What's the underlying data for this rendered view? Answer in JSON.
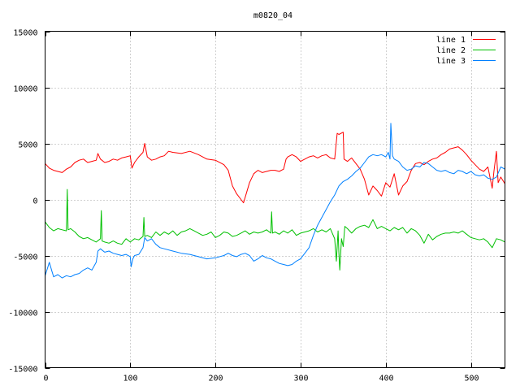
{
  "chart_data": {
    "type": "line",
    "title": "m0820_04",
    "xlabel": "",
    "ylabel": "",
    "xlim": [
      0,
      540
    ],
    "ylim": [
      -15000,
      15000
    ],
    "xticks": [
      0,
      100,
      200,
      300,
      400,
      500
    ],
    "xtick_labels": [
      "0",
      "100",
      "200",
      "300",
      "400",
      "500"
    ],
    "yticks": [
      -15000,
      -10000,
      -5000,
      0,
      5000,
      10000,
      15000
    ],
    "ytick_labels": [
      "-15000",
      "-10000",
      "-5000",
      "0",
      "5000",
      "10000",
      "15000"
    ],
    "grid": true,
    "legend_position": "top-right",
    "series": [
      {
        "name": "line 1",
        "color": "#ff0000",
        "x": [
          0,
          5,
          10,
          15,
          20,
          25,
          30,
          35,
          40,
          45,
          50,
          55,
          60,
          62,
          65,
          70,
          75,
          80,
          85,
          90,
          95,
          100,
          102,
          105,
          110,
          115,
          117,
          120,
          125,
          130,
          135,
          140,
          145,
          150,
          160,
          170,
          180,
          190,
          200,
          210,
          215,
          220,
          225,
          230,
          233,
          235,
          240,
          245,
          250,
          255,
          260,
          265,
          270,
          275,
          280,
          283,
          285,
          290,
          295,
          300,
          305,
          310,
          315,
          320,
          325,
          330,
          335,
          340,
          343,
          345,
          350,
          351,
          355,
          360,
          365,
          370,
          375,
          380,
          385,
          390,
          395,
          400,
          405,
          410,
          415,
          420,
          425,
          430,
          435,
          440,
          445,
          450,
          455,
          460,
          465,
          470,
          475,
          480,
          485,
          490,
          495,
          500,
          505,
          510,
          515,
          520,
          525,
          527,
          530,
          532,
          535,
          540
        ],
        "y": [
          3200,
          2800,
          2600,
          2500,
          2400,
          2700,
          2900,
          3300,
          3500,
          3600,
          3300,
          3400,
          3500,
          4100,
          3600,
          3300,
          3400,
          3600,
          3500,
          3700,
          3800,
          3900,
          2800,
          3300,
          3800,
          4200,
          5000,
          3800,
          3500,
          3600,
          3800,
          3900,
          4300,
          4200,
          4100,
          4300,
          4000,
          3600,
          3500,
          3100,
          2600,
          1200,
          500,
          0,
          -300,
          200,
          1500,
          2300,
          2600,
          2400,
          2500,
          2600,
          2600,
          2500,
          2700,
          3600,
          3800,
          4000,
          3800,
          3400,
          3600,
          3800,
          3900,
          3700,
          3900,
          4000,
          3700,
          3600,
          5900,
          5800,
          6000,
          3600,
          3400,
          3700,
          3200,
          2700,
          1800,
          400,
          1200,
          800,
          300,
          1500,
          1100,
          2300,
          400,
          1200,
          1600,
          2600,
          3200,
          3300,
          3100,
          3400,
          3600,
          3700,
          4000,
          4200,
          4500,
          4600,
          4700,
          4400,
          4000,
          3500,
          3100,
          2700,
          2500,
          2900,
          1000,
          2500,
          4300,
          1500,
          2000,
          1400
        ]
      },
      {
        "name": "line 2",
        "color": "#00c000",
        "x": [
          0,
          5,
          10,
          15,
          20,
          25,
          26,
          27,
          30,
          35,
          40,
          45,
          50,
          55,
          60,
          65,
          66,
          67,
          70,
          75,
          80,
          85,
          90,
          95,
          100,
          105,
          110,
          115,
          116,
          117,
          120,
          125,
          130,
          135,
          140,
          145,
          150,
          155,
          160,
          165,
          170,
          175,
          180,
          185,
          190,
          195,
          200,
          205,
          210,
          215,
          220,
          225,
          230,
          235,
          240,
          245,
          250,
          255,
          260,
          265,
          266,
          267,
          270,
          275,
          280,
          285,
          290,
          295,
          300,
          305,
          310,
          315,
          320,
          325,
          330,
          335,
          340,
          342,
          344,
          345,
          346,
          348,
          350,
          352,
          355,
          360,
          365,
          370,
          375,
          380,
          385,
          390,
          395,
          400,
          405,
          410,
          415,
          420,
          425,
          430,
          435,
          440,
          445,
          450,
          455,
          460,
          465,
          470,
          475,
          480,
          485,
          490,
          495,
          500,
          505,
          510,
          515,
          520,
          525,
          530,
          535,
          540
        ],
        "y": [
          -2000,
          -2500,
          -2800,
          -2600,
          -2700,
          -2800,
          900,
          -2700,
          -2600,
          -2900,
          -3300,
          -3500,
          -3400,
          -3600,
          -3800,
          -3500,
          -1000,
          -3700,
          -3800,
          -3900,
          -3700,
          -3900,
          -4000,
          -3500,
          -3800,
          -3500,
          -3600,
          -3300,
          -1600,
          -3300,
          -3200,
          -3400,
          -2900,
          -3200,
          -2900,
          -3100,
          -2800,
          -3200,
          -2900,
          -2800,
          -2600,
          -2800,
          -3000,
          -3200,
          -3100,
          -2900,
          -3400,
          -3200,
          -2900,
          -3000,
          -3300,
          -3200,
          -3000,
          -2800,
          -3100,
          -2900,
          -3000,
          -2900,
          -2700,
          -3000,
          -1100,
          -3000,
          -2900,
          -3100,
          -2800,
          -3000,
          -2700,
          -3200,
          -3000,
          -2900,
          -2800,
          -2600,
          -2900,
          -2700,
          -2900,
          -2600,
          -3500,
          -5500,
          -2800,
          -4800,
          -6300,
          -3500,
          -4200,
          -2400,
          -2600,
          -3000,
          -2600,
          -2400,
          -2300,
          -2500,
          -1800,
          -2600,
          -2400,
          -2600,
          -2800,
          -2500,
          -2700,
          -2500,
          -3000,
          -2600,
          -2800,
          -3200,
          -3900,
          -3100,
          -3600,
          -3300,
          -3100,
          -3000,
          -3000,
          -2900,
          -3000,
          -2800,
          -3100,
          -3400,
          -3500,
          -3600,
          -3500,
          -3800,
          -4300,
          -3500,
          -3600,
          -3800
        ]
      },
      {
        "name": "line 3",
        "color": "#0080ff",
        "x": [
          0,
          3,
          5,
          8,
          10,
          15,
          20,
          25,
          30,
          35,
          40,
          45,
          50,
          55,
          60,
          62,
          65,
          70,
          75,
          80,
          85,
          90,
          95,
          100,
          101,
          103,
          105,
          110,
          115,
          117,
          120,
          125,
          130,
          135,
          140,
          150,
          160,
          170,
          180,
          190,
          200,
          210,
          215,
          220,
          225,
          230,
          235,
          240,
          245,
          250,
          255,
          260,
          265,
          270,
          275,
          280,
          285,
          290,
          295,
          300,
          305,
          310,
          315,
          320,
          325,
          330,
          335,
          340,
          345,
          350,
          355,
          360,
          365,
          370,
          375,
          380,
          385,
          390,
          395,
          400,
          403,
          405,
          406,
          408,
          410,
          415,
          420,
          425,
          430,
          435,
          440,
          445,
          450,
          455,
          460,
          465,
          470,
          475,
          480,
          485,
          490,
          495,
          500,
          505,
          510,
          515,
          520,
          525,
          530,
          535,
          540
        ],
        "y": [
          -6800,
          -6100,
          -5600,
          -6400,
          -6900,
          -6700,
          -7000,
          -6800,
          -6900,
          -6700,
          -6600,
          -6300,
          -6100,
          -6300,
          -5600,
          -4600,
          -4400,
          -4700,
          -4600,
          -4800,
          -4900,
          -5000,
          -4900,
          -5100,
          -6000,
          -5300,
          -5000,
          -4900,
          -4300,
          -3400,
          -3700,
          -3500,
          -4000,
          -4300,
          -4400,
          -4600,
          -4800,
          -4900,
          -5100,
          -5300,
          -5200,
          -5000,
          -4800,
          -5000,
          -5100,
          -4900,
          -4800,
          -5000,
          -5500,
          -5300,
          -5000,
          -5200,
          -5300,
          -5500,
          -5700,
          -5800,
          -5900,
          -5800,
          -5500,
          -5300,
          -4800,
          -4300,
          -3200,
          -2300,
          -1600,
          -900,
          -200,
          400,
          1200,
          1600,
          1800,
          2100,
          2500,
          2800,
          3300,
          3800,
          4000,
          3900,
          4000,
          3800,
          4200,
          3600,
          6800,
          3900,
          3600,
          3400,
          2900,
          2600,
          2700,
          3000,
          2900,
          3300,
          3200,
          2900,
          2600,
          2500,
          2600,
          2400,
          2300,
          2600,
          2500,
          2300,
          2500,
          2200,
          2100,
          2200,
          1900,
          1800,
          2000,
          2900,
          2700
        ]
      }
    ]
  }
}
